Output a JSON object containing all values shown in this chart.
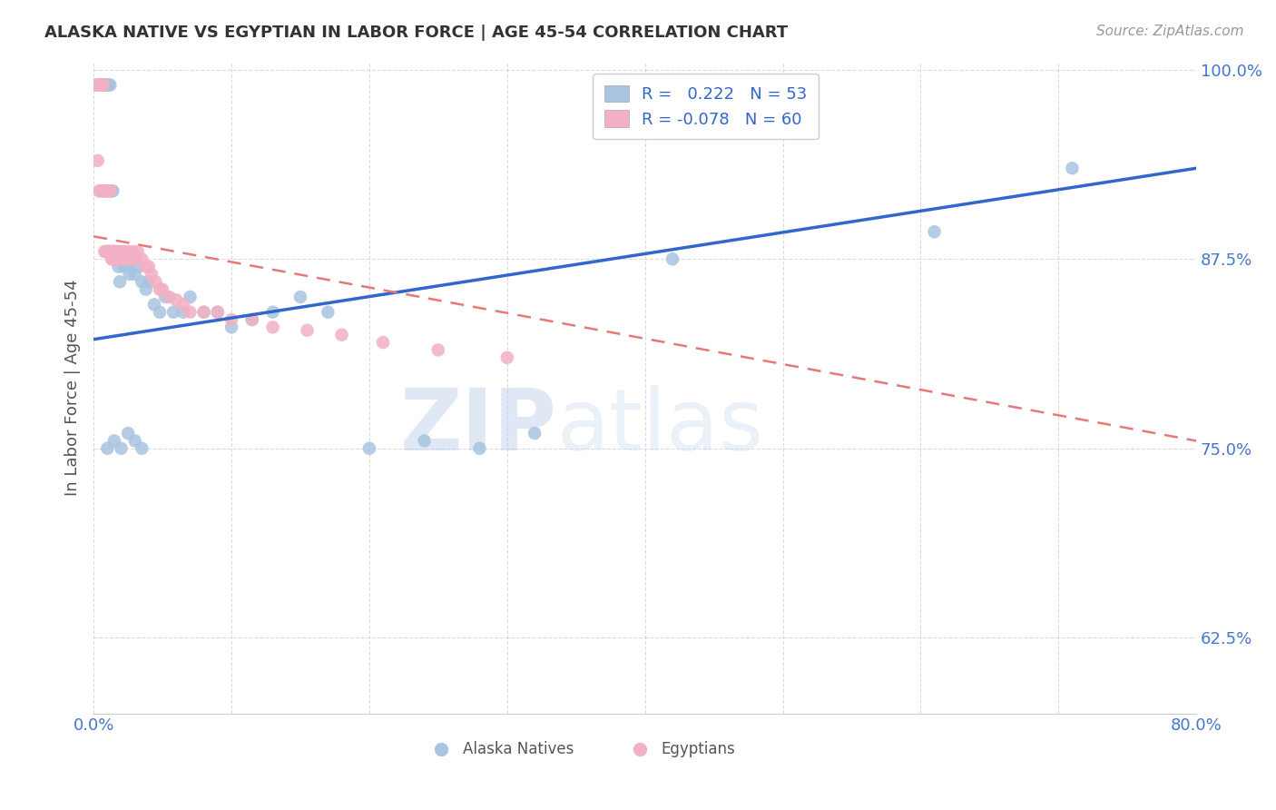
{
  "title": "ALASKA NATIVE VS EGYPTIAN IN LABOR FORCE | AGE 45-54 CORRELATION CHART",
  "source": "Source: ZipAtlas.com",
  "ylabel": "In Labor Force | Age 45-54",
  "xlim": [
    0.0,
    0.8
  ],
  "ylim": [
    0.575,
    1.005
  ],
  "xticks": [
    0.0,
    0.1,
    0.2,
    0.3,
    0.4,
    0.5,
    0.6,
    0.7,
    0.8
  ],
  "xticklabels": [
    "0.0%",
    "",
    "",
    "",
    "",
    "",
    "",
    "",
    "80.0%"
  ],
  "yticks": [
    0.625,
    0.75,
    0.875,
    1.0
  ],
  "yticklabels": [
    "62.5%",
    "75.0%",
    "87.5%",
    "100.0%"
  ],
  "legend_r_blue": "0.222",
  "legend_n_blue": "53",
  "legend_r_pink": "-0.078",
  "legend_n_pink": "60",
  "blue_color": "#a8c4e0",
  "pink_color": "#f2b0c4",
  "blue_line_color": "#3366cc",
  "pink_line_color": "#e87878",
  "watermark_zip": "ZIP",
  "watermark_atlas": "atlas",
  "blue_line_x": [
    0.0,
    0.8
  ],
  "blue_line_y": [
    0.822,
    0.935
  ],
  "pink_line_x": [
    0.0,
    0.8
  ],
  "pink_line_y": [
    0.89,
    0.755
  ],
  "alaska_natives_x": [
    0.003,
    0.004,
    0.005,
    0.006,
    0.007,
    0.008,
    0.009,
    0.01,
    0.011,
    0.012,
    0.013,
    0.014,
    0.015,
    0.016,
    0.017,
    0.018,
    0.019,
    0.02,
    0.022,
    0.024,
    0.026,
    0.028,
    0.03,
    0.032,
    0.035,
    0.038,
    0.04,
    0.044,
    0.048,
    0.052,
    0.058,
    0.065,
    0.07,
    0.08,
    0.09,
    0.1,
    0.115,
    0.13,
    0.15,
    0.17,
    0.2,
    0.24,
    0.28,
    0.32,
    0.01,
    0.015,
    0.02,
    0.025,
    0.03,
    0.035,
    0.42,
    0.61,
    0.71
  ],
  "alaska_natives_y": [
    0.99,
    0.99,
    0.99,
    0.99,
    0.99,
    0.99,
    0.99,
    0.99,
    0.99,
    0.99,
    0.92,
    0.92,
    0.88,
    0.88,
    0.875,
    0.87,
    0.86,
    0.875,
    0.87,
    0.87,
    0.865,
    0.875,
    0.865,
    0.87,
    0.86,
    0.855,
    0.86,
    0.845,
    0.84,
    0.85,
    0.84,
    0.84,
    0.85,
    0.84,
    0.84,
    0.83,
    0.835,
    0.84,
    0.85,
    0.84,
    0.75,
    0.755,
    0.75,
    0.76,
    0.75,
    0.755,
    0.75,
    0.76,
    0.755,
    0.75,
    0.875,
    0.893,
    0.935
  ],
  "egyptians_x": [
    0.002,
    0.003,
    0.004,
    0.004,
    0.005,
    0.005,
    0.006,
    0.006,
    0.007,
    0.007,
    0.008,
    0.008,
    0.009,
    0.009,
    0.01,
    0.01,
    0.011,
    0.011,
    0.012,
    0.012,
    0.013,
    0.013,
    0.014,
    0.014,
    0.015,
    0.016,
    0.017,
    0.018,
    0.019,
    0.02,
    0.021,
    0.022,
    0.023,
    0.025,
    0.027,
    0.028,
    0.03,
    0.032,
    0.035,
    0.038,
    0.04,
    0.042,
    0.045,
    0.048,
    0.05,
    0.055,
    0.06,
    0.065,
    0.07,
    0.08,
    0.09,
    0.1,
    0.115,
    0.13,
    0.155,
    0.18,
    0.21,
    0.25,
    0.3,
    0.003
  ],
  "egyptians_y": [
    0.99,
    0.99,
    0.99,
    0.92,
    0.99,
    0.92,
    0.99,
    0.92,
    0.99,
    0.92,
    0.92,
    0.88,
    0.92,
    0.88,
    0.92,
    0.88,
    0.92,
    0.88,
    0.92,
    0.88,
    0.88,
    0.875,
    0.88,
    0.875,
    0.88,
    0.875,
    0.88,
    0.875,
    0.88,
    0.88,
    0.875,
    0.88,
    0.875,
    0.88,
    0.875,
    0.88,
    0.875,
    0.88,
    0.875,
    0.87,
    0.87,
    0.865,
    0.86,
    0.855,
    0.855,
    0.85,
    0.848,
    0.845,
    0.84,
    0.84,
    0.84,
    0.835,
    0.835,
    0.83,
    0.828,
    0.825,
    0.82,
    0.815,
    0.81,
    0.94
  ]
}
